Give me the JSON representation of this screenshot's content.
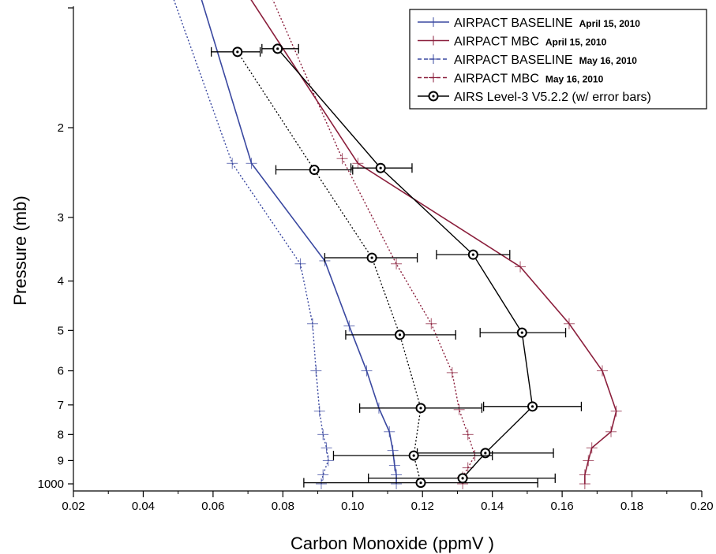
{
  "chart_data": {
    "type": "line",
    "xlabel": "Carbon Monoxide (ppmV )",
    "ylabel": "Pressure (mb)",
    "xlim": [
      0.02,
      0.2
    ],
    "x_ticks": [
      "0.02",
      "0.04",
      "0.06",
      "0.08",
      "0.10",
      "0.12",
      "0.14",
      "0.16",
      "0.18",
      "0.20"
    ],
    "y_ticks": [
      {
        "label": "2",
        "p": 2
      },
      {
        "label": "3",
        "p": 3
      },
      {
        "label": "4",
        "p": 4
      },
      {
        "label": "5",
        "p": 5
      },
      {
        "label": "6",
        "p": 6
      },
      {
        "label": "7",
        "p": 7
      },
      {
        "label": "8",
        "p": 8
      },
      {
        "label": "9",
        "p": 9
      },
      {
        "label": "1000",
        "p": 10
      }
    ],
    "y_scale": "log",
    "grid": false,
    "legend_position": "top-right",
    "series": [
      {
        "name": "AIRPACT BASELINE",
        "date": "April 15, 2010",
        "color": "#3a48a0",
        "style": "solid",
        "points": [
          {
            "x": 0.0535,
            "p": 0.95
          },
          {
            "x": 0.071,
            "p": 2.35
          },
          {
            "x": 0.092,
            "p": 3.65
          },
          {
            "x": 0.099,
            "p": 4.9
          },
          {
            "x": 0.104,
            "p": 6.0
          },
          {
            "x": 0.1075,
            "p": 7.1
          },
          {
            "x": 0.1105,
            "p": 7.9
          },
          {
            "x": 0.1115,
            "p": 8.6
          },
          {
            "x": 0.112,
            "p": 9.2
          },
          {
            "x": 0.1125,
            "p": 9.6
          },
          {
            "x": 0.1125,
            "p": 10.0
          }
        ]
      },
      {
        "name": "AIRPACT MBC",
        "date": "April 15, 2010",
        "color": "#8b1f3c",
        "style": "solid",
        "points": [
          {
            "x": 0.064,
            "p": 0.95
          },
          {
            "x": 0.1015,
            "p": 2.35
          },
          {
            "x": 0.148,
            "p": 3.75
          },
          {
            "x": 0.162,
            "p": 4.85
          },
          {
            "x": 0.1715,
            "p": 6.0
          },
          {
            "x": 0.1755,
            "p": 7.2
          },
          {
            "x": 0.174,
            "p": 7.9
          },
          {
            "x": 0.1685,
            "p": 8.5
          },
          {
            "x": 0.1675,
            "p": 9.0
          },
          {
            "x": 0.1665,
            "p": 9.6
          },
          {
            "x": 0.1665,
            "p": 10.0
          }
        ]
      },
      {
        "name": "AIRPACT BASELINE",
        "date": "May 16, 2010",
        "color": "#3a48a0",
        "style": "dotted",
        "points": [
          {
            "x": 0.045,
            "p": 0.95
          },
          {
            "x": 0.0655,
            "p": 2.35
          },
          {
            "x": 0.085,
            "p": 3.7
          },
          {
            "x": 0.0885,
            "p": 4.85
          },
          {
            "x": 0.0895,
            "p": 6.0
          },
          {
            "x": 0.0905,
            "p": 7.2
          },
          {
            "x": 0.0915,
            "p": 8.0
          },
          {
            "x": 0.0925,
            "p": 8.5
          },
          {
            "x": 0.093,
            "p": 9.0
          },
          {
            "x": 0.0915,
            "p": 9.6
          },
          {
            "x": 0.091,
            "p": 10.0
          }
        ]
      },
      {
        "name": "AIRPACT MBC",
        "date": "May 16, 2010",
        "color": "#8b1f3c",
        "style": "dotted",
        "points": [
          {
            "x": 0.0725,
            "p": 0.95
          },
          {
            "x": 0.097,
            "p": 2.3
          },
          {
            "x": 0.1125,
            "p": 3.7
          },
          {
            "x": 0.1225,
            "p": 4.85
          },
          {
            "x": 0.1285,
            "p": 6.05
          },
          {
            "x": 0.1305,
            "p": 7.15
          },
          {
            "x": 0.133,
            "p": 8.0
          },
          {
            "x": 0.135,
            "p": 8.8
          },
          {
            "x": 0.133,
            "p": 9.3
          },
          {
            "x": 0.1315,
            "p": 9.7
          },
          {
            "x": 0.1315,
            "p": 10.0
          }
        ]
      }
    ],
    "airs_series": [
      {
        "name": "AIRS Level-3 V5.2.2 (w/ error bars)",
        "color": "#000000",
        "style": "solid",
        "points": [
          {
            "x": 0.0785,
            "p": 1.4,
            "err_lo": 0.074,
            "err_hi": 0.0845
          },
          {
            "x": 0.108,
            "p": 2.4,
            "err_lo": 0.0995,
            "err_hi": 0.117
          },
          {
            "x": 0.1345,
            "p": 3.55,
            "err_lo": 0.124,
            "err_hi": 0.145
          },
          {
            "x": 0.1485,
            "p": 5.05,
            "err_lo": 0.1365,
            "err_hi": 0.161
          },
          {
            "x": 0.1515,
            "p": 7.05,
            "err_lo": 0.1375,
            "err_hi": 0.1655
          },
          {
            "x": 0.138,
            "p": 8.7,
            "err_lo": 0.1185,
            "err_hi": 0.1575
          },
          {
            "x": 0.1315,
            "p": 9.75,
            "err_lo": 0.1045,
            "err_hi": 0.158
          }
        ]
      },
      {
        "name": "AIRS Level-3 V5.2.2 (w/ error bars)",
        "color": "#000000",
        "style": "dotted",
        "points": [
          {
            "x": 0.067,
            "p": 1.42,
            "err_lo": 0.0595,
            "err_hi": 0.0735
          },
          {
            "x": 0.089,
            "p": 2.42,
            "err_lo": 0.078,
            "err_hi": 0.1
          },
          {
            "x": 0.1055,
            "p": 3.6,
            "err_lo": 0.092,
            "err_hi": 0.1185
          },
          {
            "x": 0.1135,
            "p": 5.1,
            "err_lo": 0.098,
            "err_hi": 0.1295
          },
          {
            "x": 0.1195,
            "p": 7.1,
            "err_lo": 0.102,
            "err_hi": 0.137
          },
          {
            "x": 0.1175,
            "p": 8.8,
            "err_lo": 0.0945,
            "err_hi": 0.14
          },
          {
            "x": 0.1195,
            "p": 9.95,
            "err_lo": 0.086,
            "err_hi": 0.153
          }
        ]
      }
    ],
    "legend": [
      {
        "label": "AIRPACT BASELINE",
        "date": "April 15, 2010",
        "color": "#3a48a0",
        "style": "solid",
        "marker": "plus"
      },
      {
        "label": "AIRPACT MBC",
        "date": "April 15, 2010",
        "color": "#8b1f3c",
        "style": "solid",
        "marker": "plus"
      },
      {
        "label": "AIRPACT BASELINE",
        "date": "May 16, 2010",
        "color": "#3a48a0",
        "style": "dashed",
        "marker": "plus"
      },
      {
        "label": "AIRPACT MBC",
        "date": "May 16, 2010",
        "color": "#8b1f3c",
        "style": "dashed",
        "marker": "plus"
      },
      {
        "label": "AIRS Level-3 V5.2.2 (w/ error bars)",
        "date": "",
        "color": "#000000",
        "style": "solid",
        "marker": "circle"
      }
    ]
  }
}
